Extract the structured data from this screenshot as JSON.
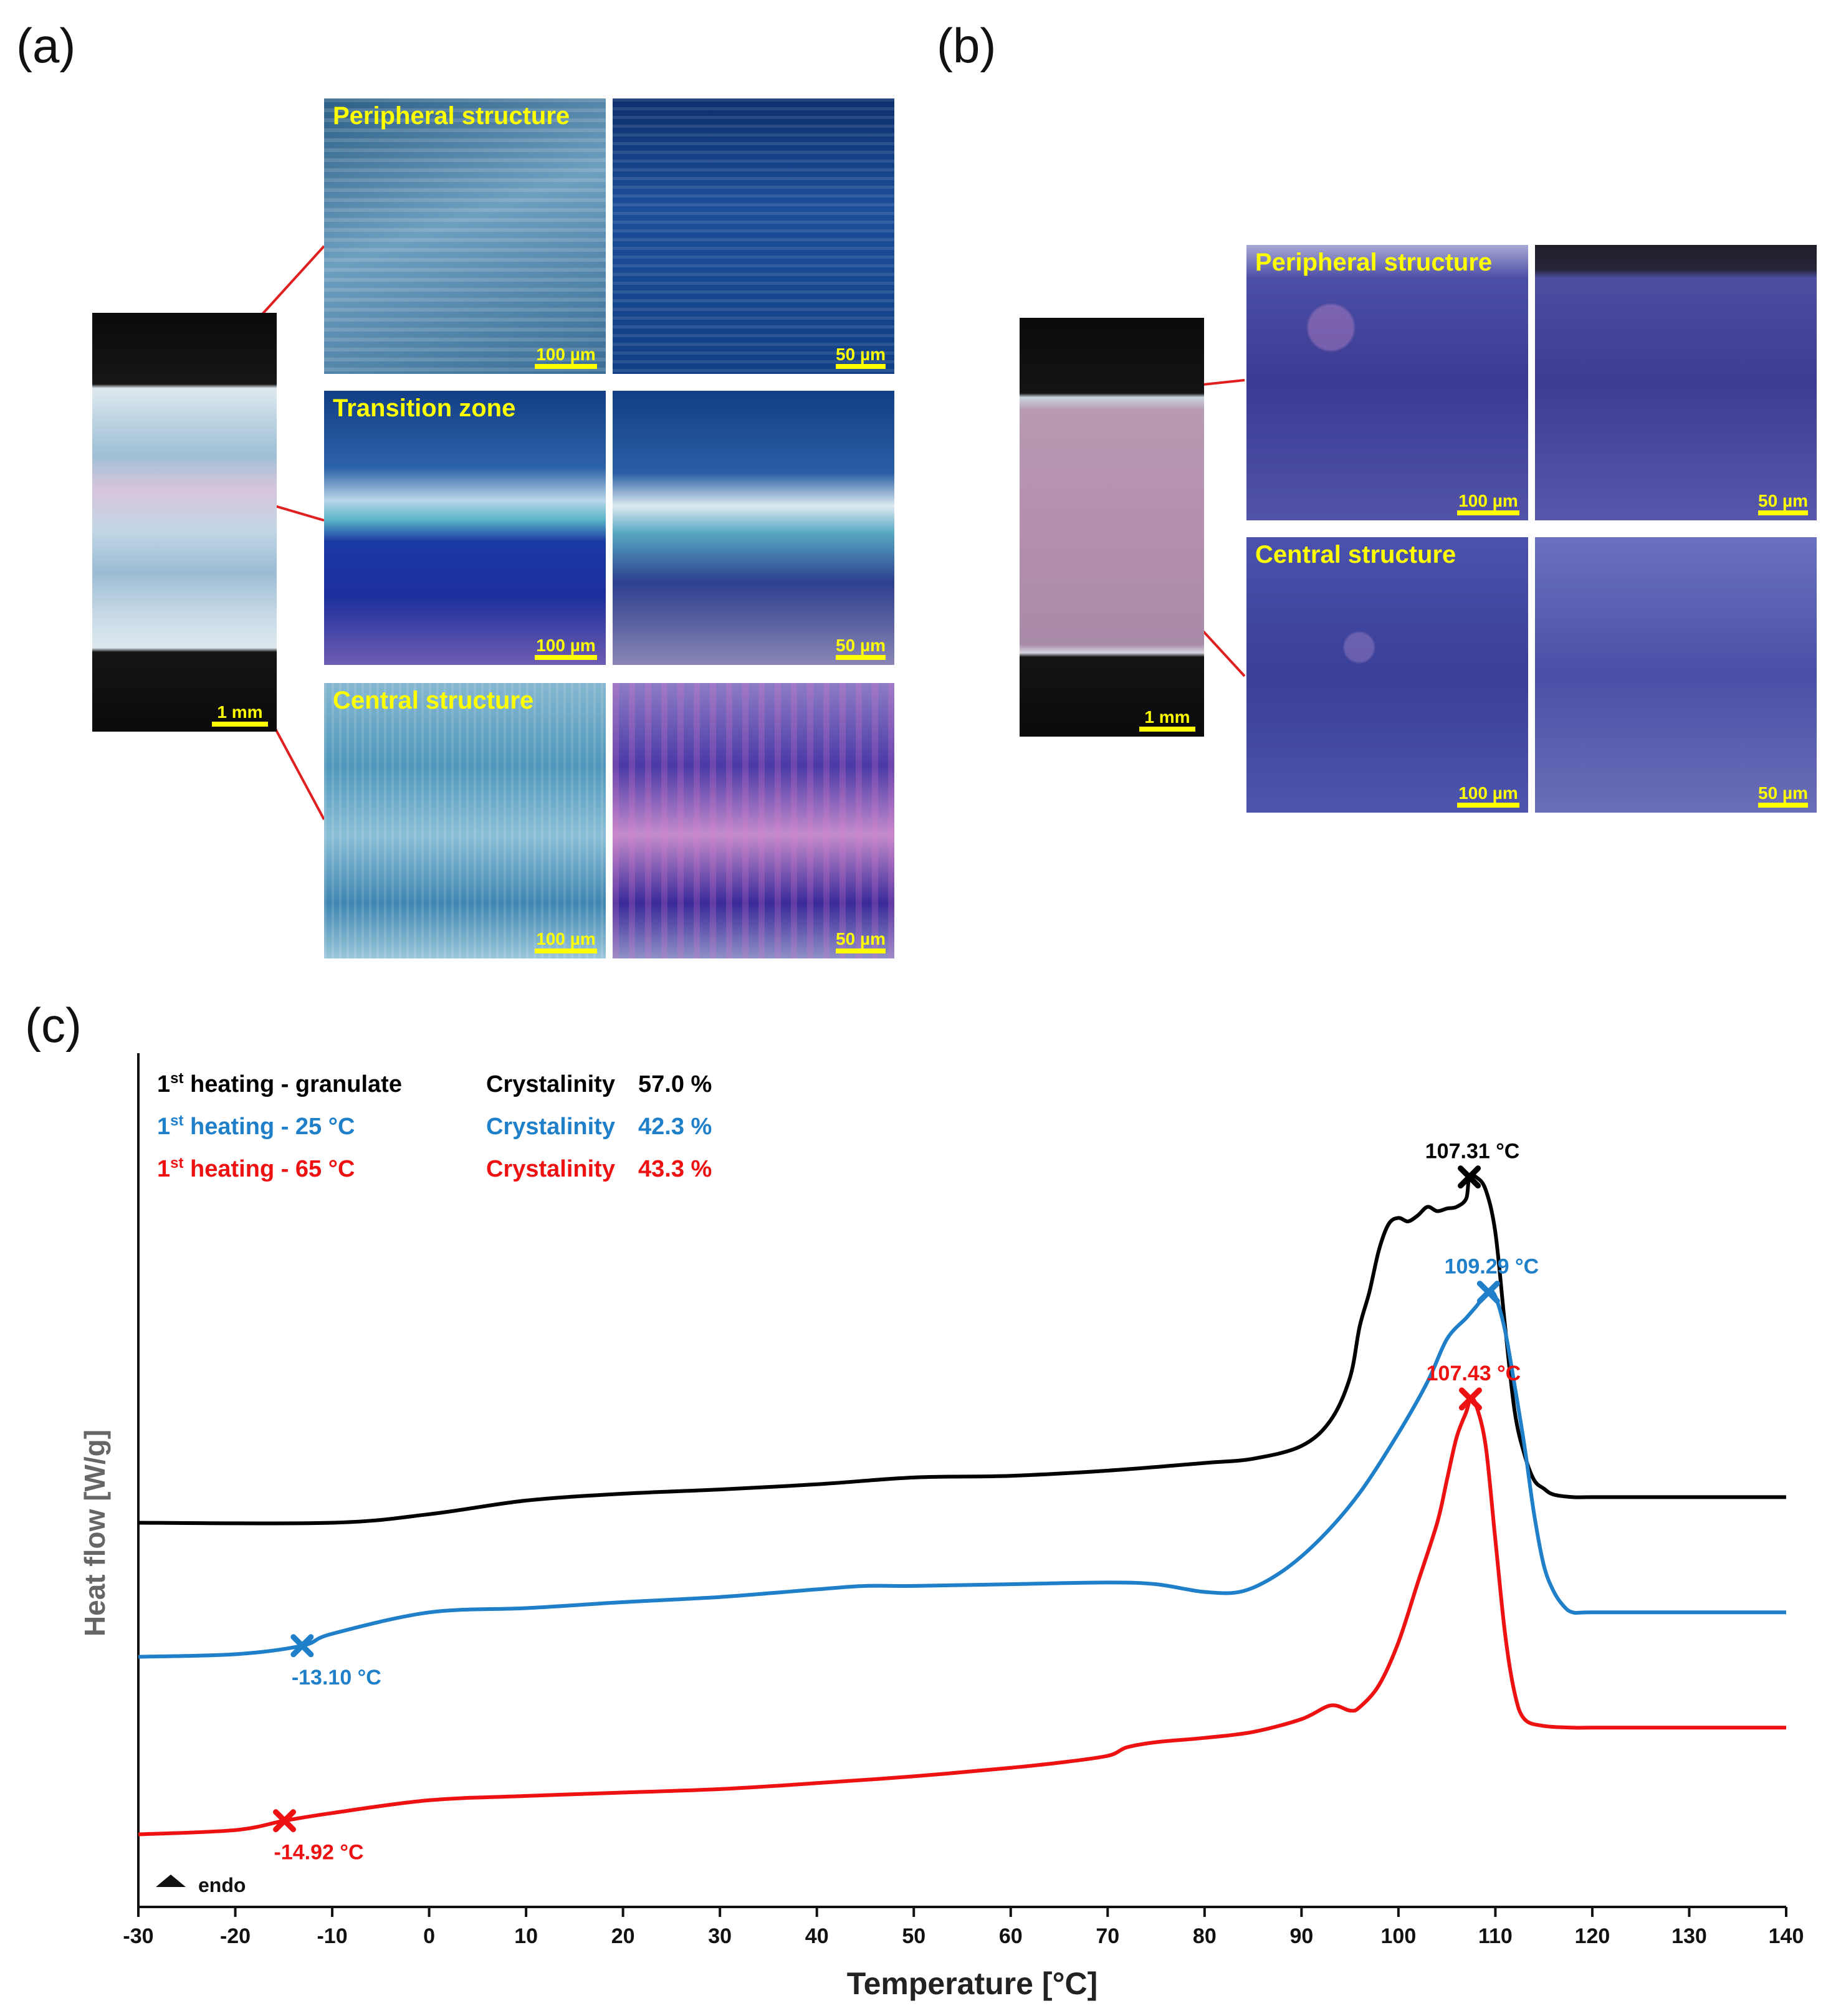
{
  "panel_a": {
    "letter": "(a)",
    "overview_scale": "1 mm",
    "rows": [
      {
        "label": "Peripheral structure",
        "scale_left": "100 µm",
        "scale_right": "50 µm"
      },
      {
        "label": "Transition zone",
        "scale_left": "100 µm",
        "scale_right": "50 µm"
      },
      {
        "label": "Central structure",
        "scale_left": "100 µm",
        "scale_right": "50 µm"
      }
    ]
  },
  "panel_b": {
    "letter": "(b)",
    "overview_scale": "1 mm",
    "rows": [
      {
        "label": "Peripheral structure",
        "scale_left": "100 µm",
        "scale_right": "50 µm"
      },
      {
        "label": "Central structure",
        "scale_left": "100 µm",
        "scale_right": "50 µm"
      }
    ]
  },
  "panel_c": {
    "letter": "(c)",
    "endo_label": "endo",
    "legend": [
      {
        "name_main": "1",
        "name_sup": "st",
        "name_rest": " heating - granulate",
        "cryst_label": "Crystalinity",
        "cryst_value": "57.0 %",
        "color": "#000000"
      },
      {
        "name_main": "1",
        "name_sup": "st",
        "name_rest": " heating - 25 °C",
        "cryst_label": "Crystalinity",
        "cryst_value": "42.3 %",
        "color": "#1f7fc8"
      },
      {
        "name_main": "1",
        "name_sup": "st",
        "name_rest": " heating - 65 °C",
        "cryst_label": "Crystalinity",
        "cryst_value": "43.3 %",
        "color": "#ee1111"
      }
    ]
  },
  "chart_data": {
    "type": "line",
    "xlabel": "Temperature [°C]",
    "ylabel": "Heat flow  [W/g]",
    "xlim": [
      -30,
      140
    ],
    "xticks": [
      "-30",
      "-20",
      "-10",
      "0",
      "10",
      "20",
      "30",
      "40",
      "50",
      "60",
      "70",
      "80",
      "90",
      "100",
      "110",
      "120",
      "130",
      "140"
    ],
    "ylim": [
      0,
      100
    ],
    "series": [
      {
        "color": "#000000",
        "x": [
          -30,
          -10,
          0,
          10,
          20,
          30,
          40,
          50,
          60,
          70,
          80,
          85,
          90,
          93,
          95,
          96,
          97,
          98,
          99,
          100,
          101,
          102,
          103,
          104,
          105,
          106,
          107,
          107.31,
          108,
          109,
          110,
          111,
          112,
          113,
          114,
          115,
          116,
          118,
          120,
          130,
          140
        ],
        "y": [
          45,
          45,
          46,
          47.6,
          48.4,
          48.9,
          49.5,
          50.3,
          50.5,
          51.1,
          52,
          52.5,
          54,
          57,
          62,
          68,
          72,
          77,
          80,
          80.7,
          80.3,
          81,
          82,
          81.5,
          81.8,
          82,
          83,
          85.5,
          85.5,
          84,
          79,
          68,
          58,
          53,
          50,
          49,
          48.3,
          48,
          48,
          48,
          48
        ]
      },
      {
        "color": "#1f7fc8",
        "x": [
          -30,
          -20,
          -13.1,
          -10,
          0,
          10,
          20,
          30,
          40,
          45,
          50,
          60,
          70,
          75,
          80,
          84,
          88,
          92,
          96,
          100,
          103,
          105,
          107,
          108,
          109.29,
          110,
          111,
          112,
          113,
          114,
          115,
          116,
          117,
          118,
          120,
          130,
          140
        ],
        "y": [
          29.3,
          29.6,
          30.6,
          32,
          34.5,
          35,
          35.7,
          36.3,
          37.2,
          37.6,
          37.6,
          37.8,
          38,
          37.8,
          36.9,
          37,
          39.3,
          43.2,
          48.5,
          55.5,
          61.5,
          66.5,
          69,
          70.3,
          72,
          71.5,
          67.5,
          61,
          54,
          46,
          40,
          37,
          35.3,
          34.5,
          34.5,
          34.5,
          34.5
        ]
      },
      {
        "color": "#ee1111",
        "x": [
          -30,
          -20,
          -14.92,
          -10,
          0,
          10,
          20,
          30,
          40,
          50,
          60,
          65,
          70,
          72,
          75,
          80,
          85,
          90,
          93,
          95,
          96,
          98,
          100,
          102,
          104,
          105,
          106,
          107,
          107.43,
          108,
          109,
          110,
          111,
          112,
          113,
          115,
          118,
          120,
          130,
          140
        ],
        "y": [
          8.5,
          9,
          10.1,
          11,
          12.5,
          13,
          13.4,
          13.8,
          14.5,
          15.3,
          16.3,
          16.9,
          17.7,
          18.7,
          19.3,
          19.8,
          20.5,
          22,
          23.6,
          23,
          23.4,
          26,
          31,
          38,
          45,
          50,
          55,
          58,
          59.5,
          58.8,
          54,
          43,
          32,
          25,
          22,
          21.2,
          21,
          21,
          21,
          21
        ]
      }
    ],
    "markers": [
      {
        "series": 0,
        "x": 107.31,
        "y": 85.5,
        "label": "107.31 °C"
      },
      {
        "series": 1,
        "x": 109.29,
        "y": 72,
        "label": "109.29 °C"
      },
      {
        "series": 1,
        "x": -13.1,
        "y": 30.6,
        "label": "-13.10 °C"
      },
      {
        "series": 2,
        "x": 107.43,
        "y": 59.5,
        "label": "107.43 °C"
      },
      {
        "series": 2,
        "x": -14.92,
        "y": 10.1,
        "label": "-14.92 °C"
      }
    ],
    "grid": false,
    "legend_position": "top-left"
  }
}
